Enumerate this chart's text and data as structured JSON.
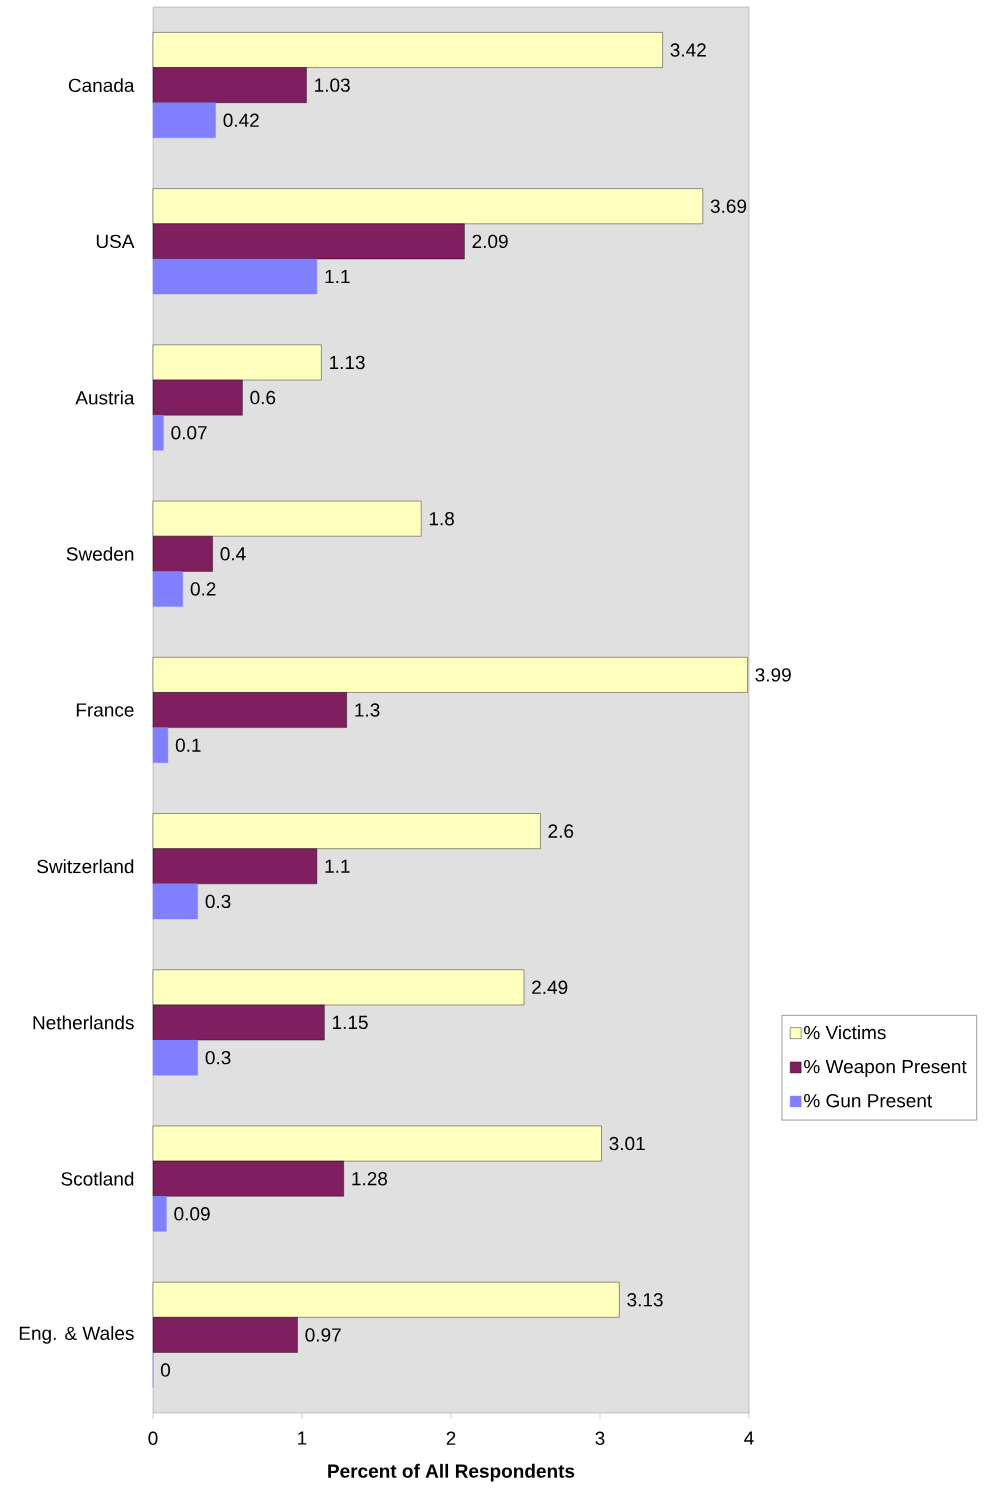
{
  "chart_data": {
    "type": "bar",
    "orientation": "horizontal",
    "xlabel": "**Percent of All Respondents**",
    "categories": [
      "Canada",
      "USA",
      "Austria",
      "Sweden",
      "France",
      "Switzerland",
      "Netherlands",
      "Scotland",
      "Eng. & Wales"
    ],
    "series": [
      {
        "name": "% Victims",
        "color": "#ffffc0",
        "values": [
          3.42,
          3.69,
          1.13,
          1.8,
          3.99,
          2.6,
          2.49,
          3.01,
          3.13
        ]
      },
      {
        "name": "% Weapon Present",
        "color": "#7f1f5f",
        "values": [
          1.03,
          2.09,
          0.6,
          0.4,
          1.3,
          1.1,
          1.15,
          1.28,
          0.97
        ]
      },
      {
        "name": "% Gun Present",
        "color": "#8080ff",
        "values": [
          0.42,
          1.1,
          0.07,
          0.2,
          0.1,
          0.3,
          0.3,
          0.09,
          0
        ]
      }
    ],
    "xlim": [
      0,
      4
    ],
    "xticks": [
      0,
      1,
      2,
      3,
      4
    ],
    "data_labels": true,
    "legend": "right"
  }
}
